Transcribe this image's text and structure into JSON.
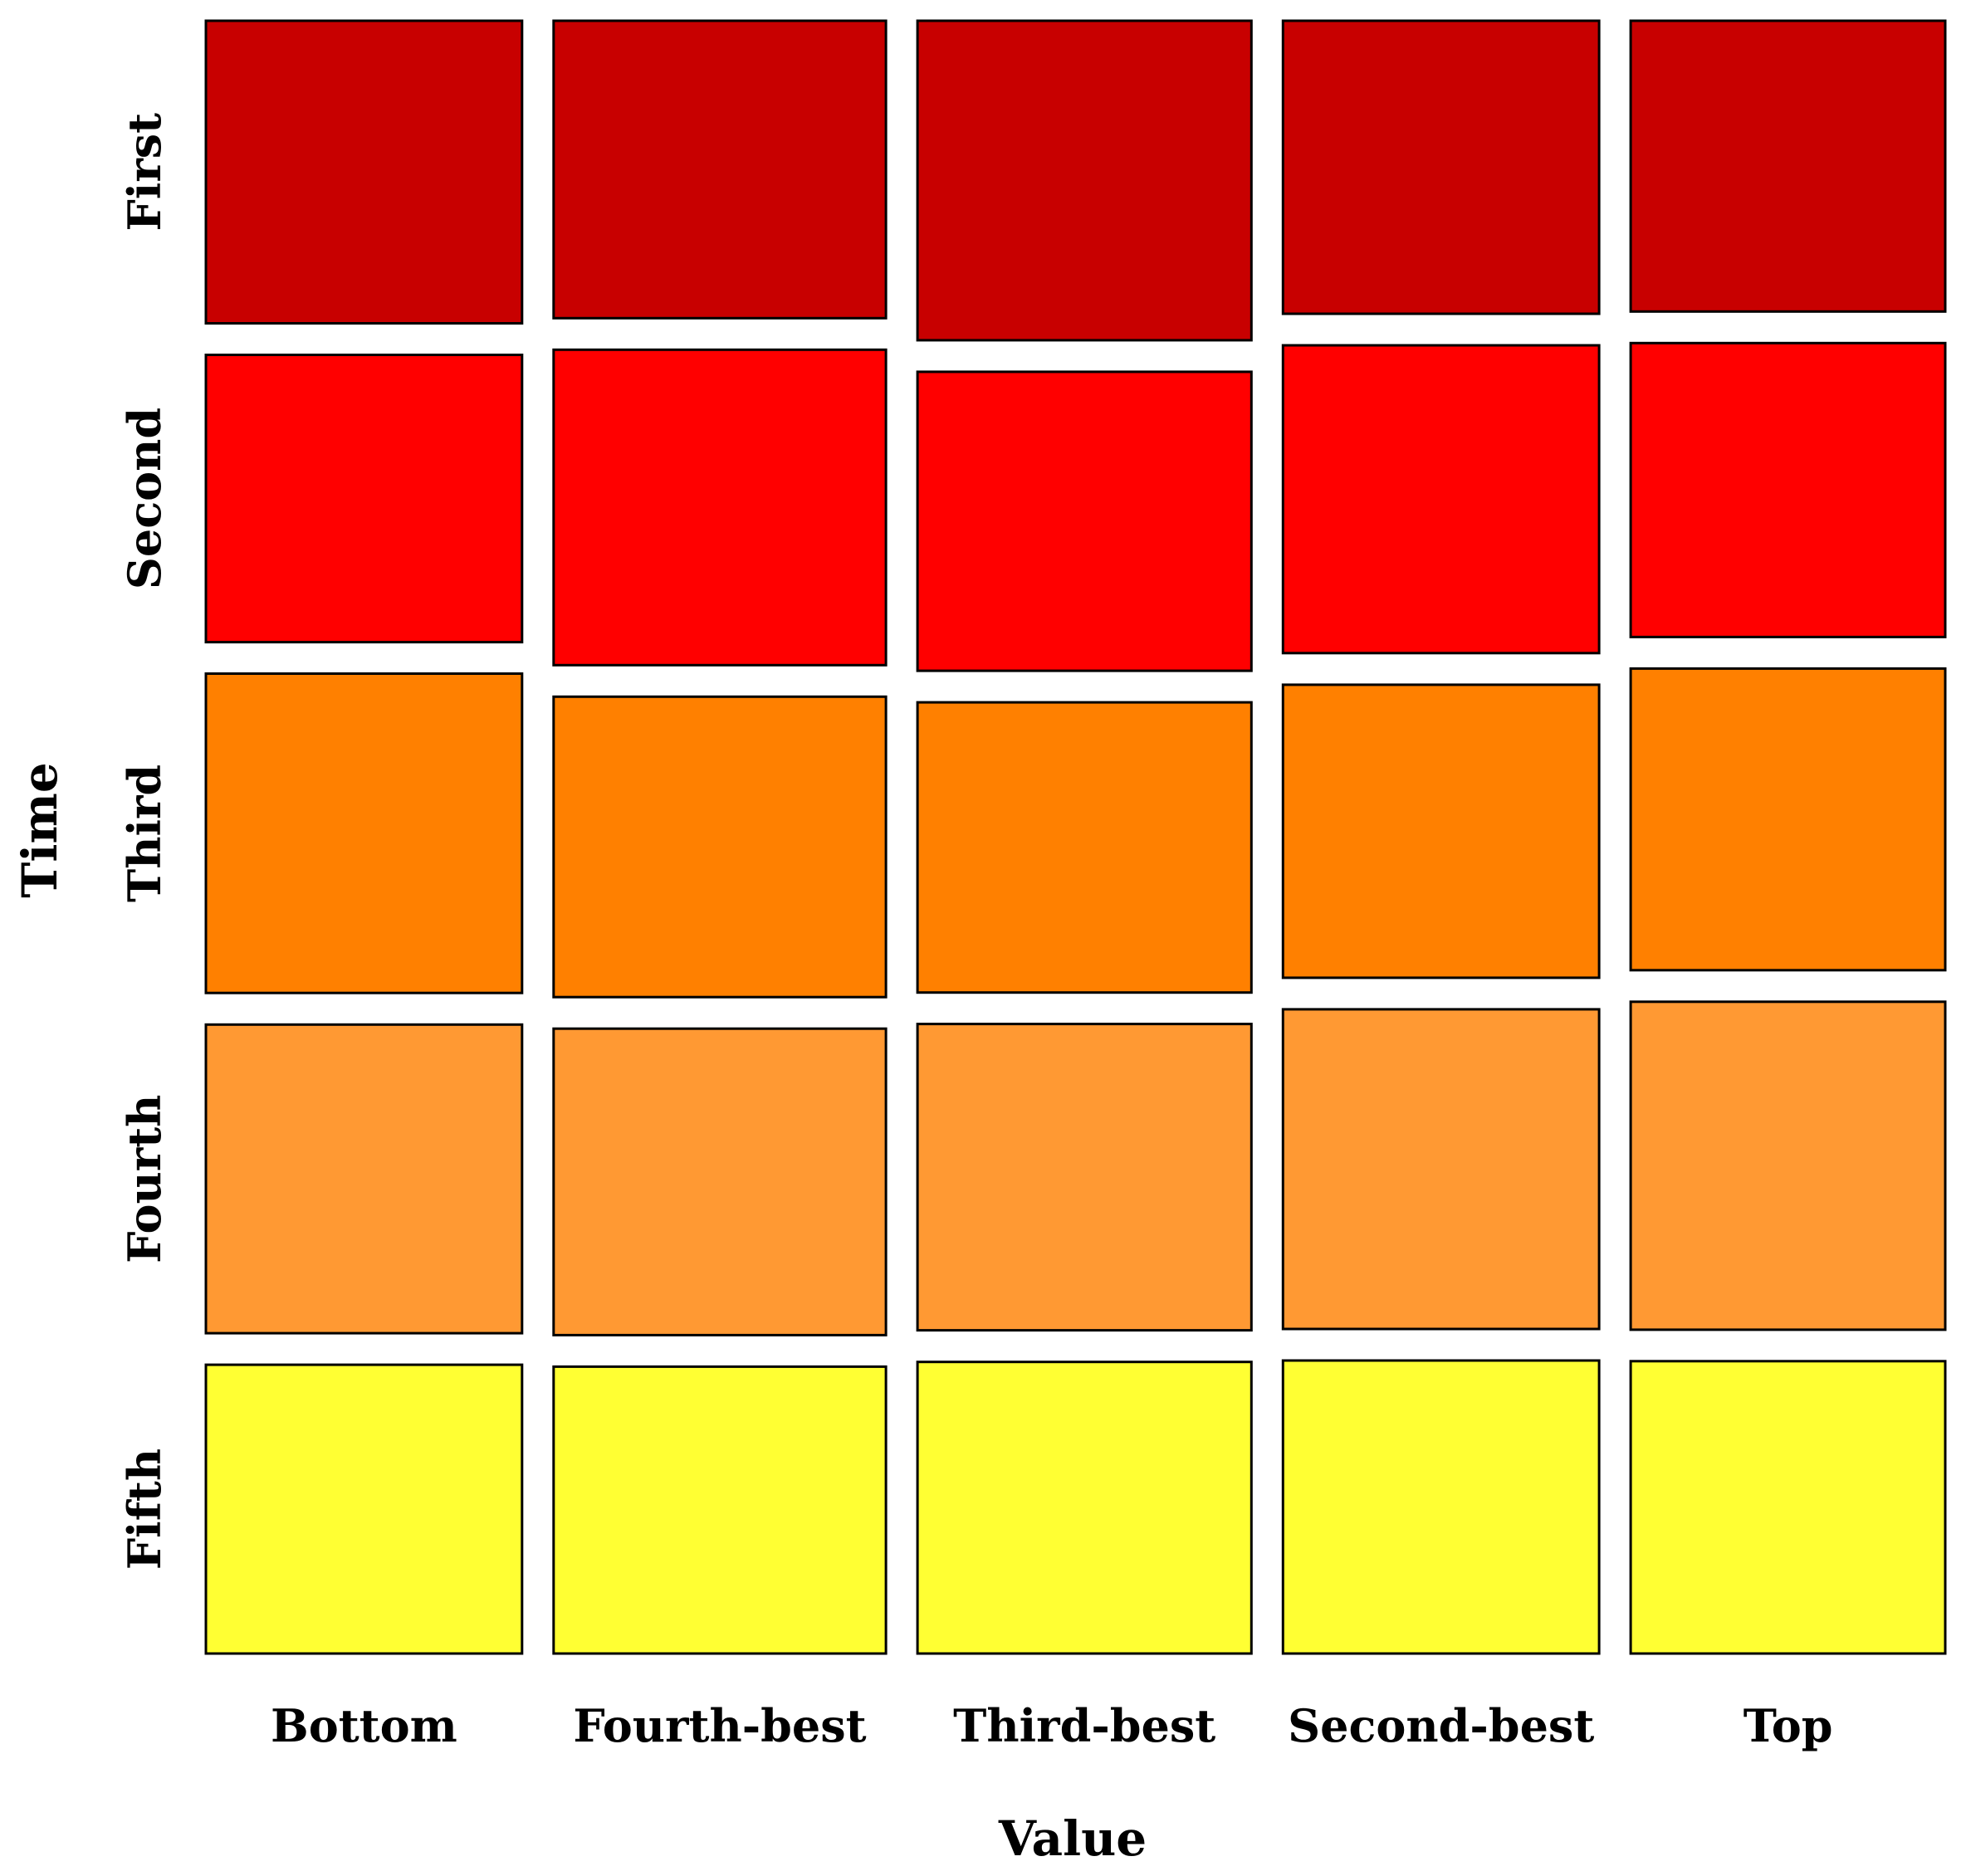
{
  "chart_data": {
    "type": "mosaic",
    "xlabel": "Value",
    "ylabel": "Time",
    "x_categories": [
      "Bottom",
      "Fourth-best",
      "Third-best",
      "Second-best",
      "Top"
    ],
    "y_categories": [
      "First",
      "Second",
      "Third",
      "Fourth",
      "Fifth"
    ],
    "column_widths": [
      0.196,
      0.206,
      0.207,
      0.196,
      0.195
    ],
    "proportions": [
      [
        0.198,
        0.198,
        0.218,
        0.198,
        0.188
      ],
      [
        0.188,
        0.21,
        0.204,
        0.208,
        0.19
      ],
      [
        0.209,
        0.2,
        0.198,
        0.198,
        0.195
      ],
      [
        0.202,
        0.204,
        0.209,
        0.216,
        0.212
      ],
      [
        0.189,
        0.191,
        0.199,
        0.198,
        0.189
      ]
    ],
    "colors": [
      "#C80000",
      "#FF0000",
      "#FF8000",
      "#FF9933",
      "#FFFF33"
    ]
  }
}
